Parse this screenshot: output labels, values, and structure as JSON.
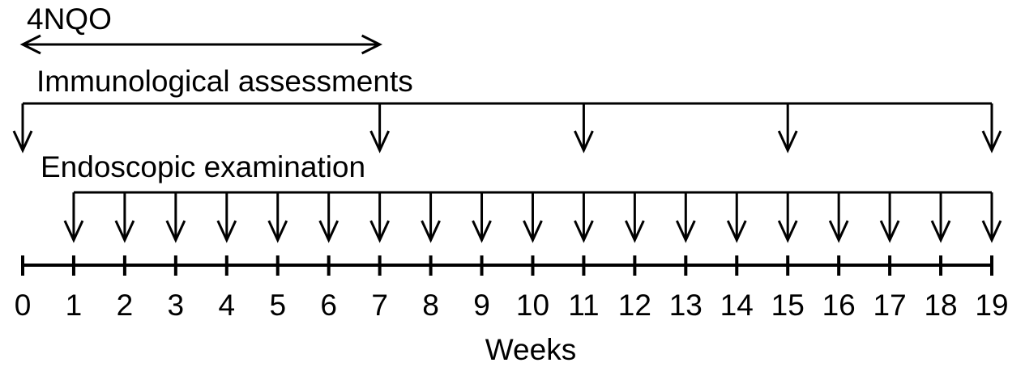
{
  "treatment": {
    "label": "4NQO",
    "weeks": [
      0,
      7
    ]
  },
  "immunological": {
    "label": "Immunological assessments",
    "weeks": [
      0,
      7,
      11,
      15,
      19
    ]
  },
  "endoscopic": {
    "label": "Endoscopic examination",
    "weeks": [
      1,
      2,
      3,
      4,
      5,
      6,
      7,
      8,
      9,
      10,
      11,
      12,
      13,
      14,
      15,
      16,
      17,
      18,
      19
    ]
  },
  "axis": {
    "label": "Weeks",
    "ticks": [
      0,
      1,
      2,
      3,
      4,
      5,
      6,
      7,
      8,
      9,
      10,
      11,
      12,
      13,
      14,
      15,
      16,
      17,
      18,
      19
    ]
  }
}
